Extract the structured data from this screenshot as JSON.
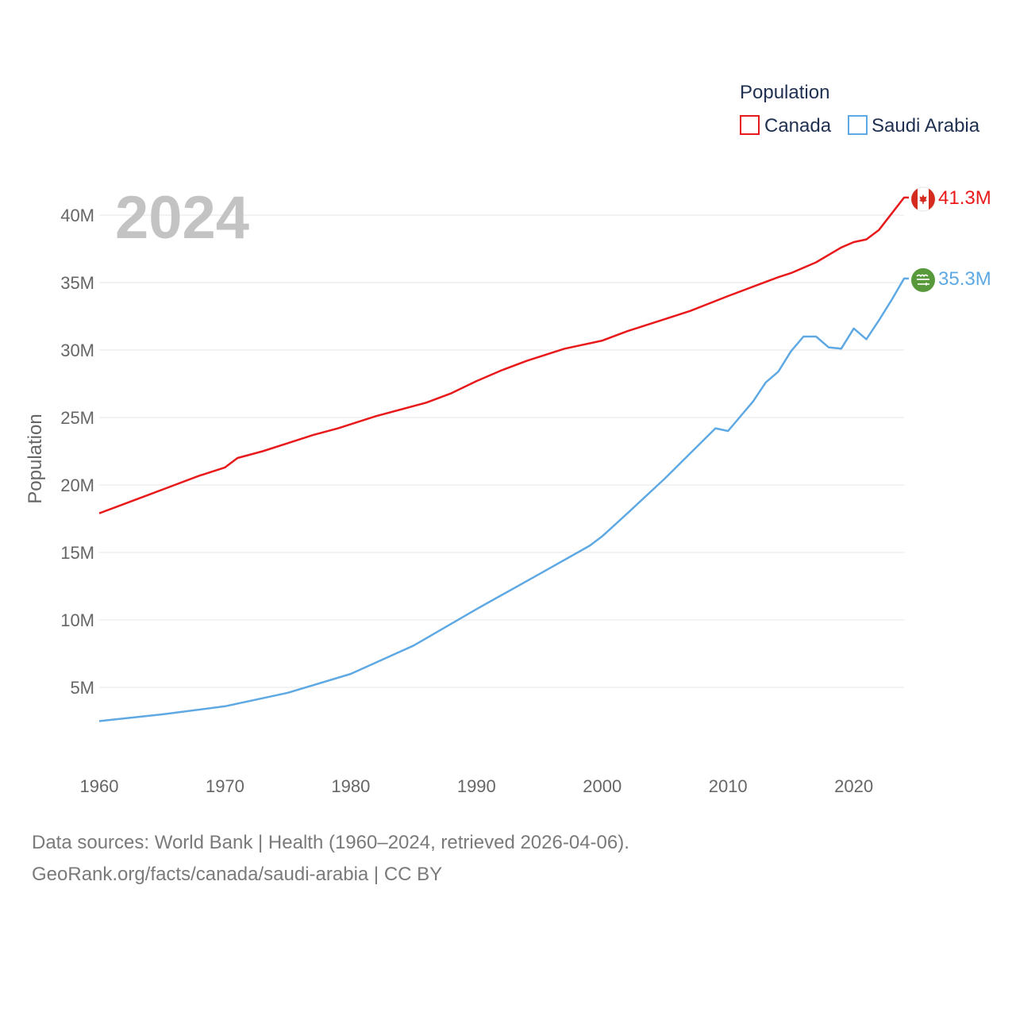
{
  "chart_data": {
    "type": "line",
    "title": "",
    "legend_title": "Population",
    "ylabel": "Population",
    "xlabel": "",
    "current_year_label": "2024",
    "xlim": [
      1960,
      2024
    ],
    "ylim": [
      0,
      45000000
    ],
    "x_ticks": [
      {
        "value": 1960,
        "label": "1960"
      },
      {
        "value": 1970,
        "label": "1970"
      },
      {
        "value": 1980,
        "label": "1980"
      },
      {
        "value": 1990,
        "label": "1990"
      },
      {
        "value": 2000,
        "label": "2000"
      },
      {
        "value": 2010,
        "label": "2010"
      },
      {
        "value": 2020,
        "label": "2020"
      }
    ],
    "y_ticks": [
      {
        "value": 5000000,
        "label": "5M"
      },
      {
        "value": 10000000,
        "label": "10M"
      },
      {
        "value": 15000000,
        "label": "15M"
      },
      {
        "value": 20000000,
        "label": "20M"
      },
      {
        "value": 25000000,
        "label": "25M"
      },
      {
        "value": 30000000,
        "label": "30M"
      },
      {
        "value": 35000000,
        "label": "35M"
      },
      {
        "value": 40000000,
        "label": "40M"
      }
    ],
    "series": [
      {
        "name": "Canada",
        "color": "#e8191a",
        "end_label": "41.3M",
        "flag": "canada-flag-icon",
        "points": [
          [
            1960,
            17900000
          ],
          [
            1962,
            18600000
          ],
          [
            1964,
            19300000
          ],
          [
            1966,
            20000000
          ],
          [
            1968,
            20700000
          ],
          [
            1970,
            21300000
          ],
          [
            1971,
            22000000
          ],
          [
            1973,
            22500000
          ],
          [
            1975,
            23100000
          ],
          [
            1977,
            23700000
          ],
          [
            1979,
            24200000
          ],
          [
            1982,
            25100000
          ],
          [
            1986,
            26100000
          ],
          [
            1988,
            26800000
          ],
          [
            1990,
            27700000
          ],
          [
            1992,
            28500000
          ],
          [
            1994,
            29200000
          ],
          [
            1997,
            30100000
          ],
          [
            2000,
            30700000
          ],
          [
            2002,
            31400000
          ],
          [
            2005,
            32300000
          ],
          [
            2007,
            32900000
          ],
          [
            2010,
            34000000
          ],
          [
            2012,
            34700000
          ],
          [
            2014,
            35400000
          ],
          [
            2015,
            35700000
          ],
          [
            2017,
            36500000
          ],
          [
            2019,
            37600000
          ],
          [
            2020,
            38000000
          ],
          [
            2021,
            38200000
          ],
          [
            2022,
            38900000
          ],
          [
            2023,
            40100000
          ],
          [
            2024,
            41300000
          ]
        ]
      },
      {
        "name": "Saudi Arabia",
        "color": "#5ea9e4",
        "end_label": "35.3M",
        "flag": "saudi-arabia-flag-icon",
        "points": [
          [
            1960,
            2500000
          ],
          [
            1965,
            3000000
          ],
          [
            1970,
            3600000
          ],
          [
            1975,
            4600000
          ],
          [
            1980,
            6000000
          ],
          [
            1985,
            8100000
          ],
          [
            1990,
            10800000
          ],
          [
            1995,
            13400000
          ],
          [
            1999,
            15500000
          ],
          [
            2000,
            16200000
          ],
          [
            2002,
            17900000
          ],
          [
            2005,
            20500000
          ],
          [
            2009,
            24200000
          ],
          [
            2010,
            24000000
          ],
          [
            2012,
            26200000
          ],
          [
            2013,
            27600000
          ],
          [
            2014,
            28400000
          ],
          [
            2015,
            29900000
          ],
          [
            2016,
            31000000
          ],
          [
            2017,
            31000000
          ],
          [
            2018,
            30200000
          ],
          [
            2019,
            30100000
          ],
          [
            2020,
            31600000
          ],
          [
            2021,
            30800000
          ],
          [
            2022,
            32200000
          ],
          [
            2023,
            33700000
          ],
          [
            2024,
            35300000
          ]
        ]
      }
    ]
  },
  "source": {
    "line1": "Data sources: World Bank | Health (1960–2024, retrieved 2026-04-06).",
    "line2": "GeoRank.org/facts/canada/saudi-arabia | CC BY"
  }
}
